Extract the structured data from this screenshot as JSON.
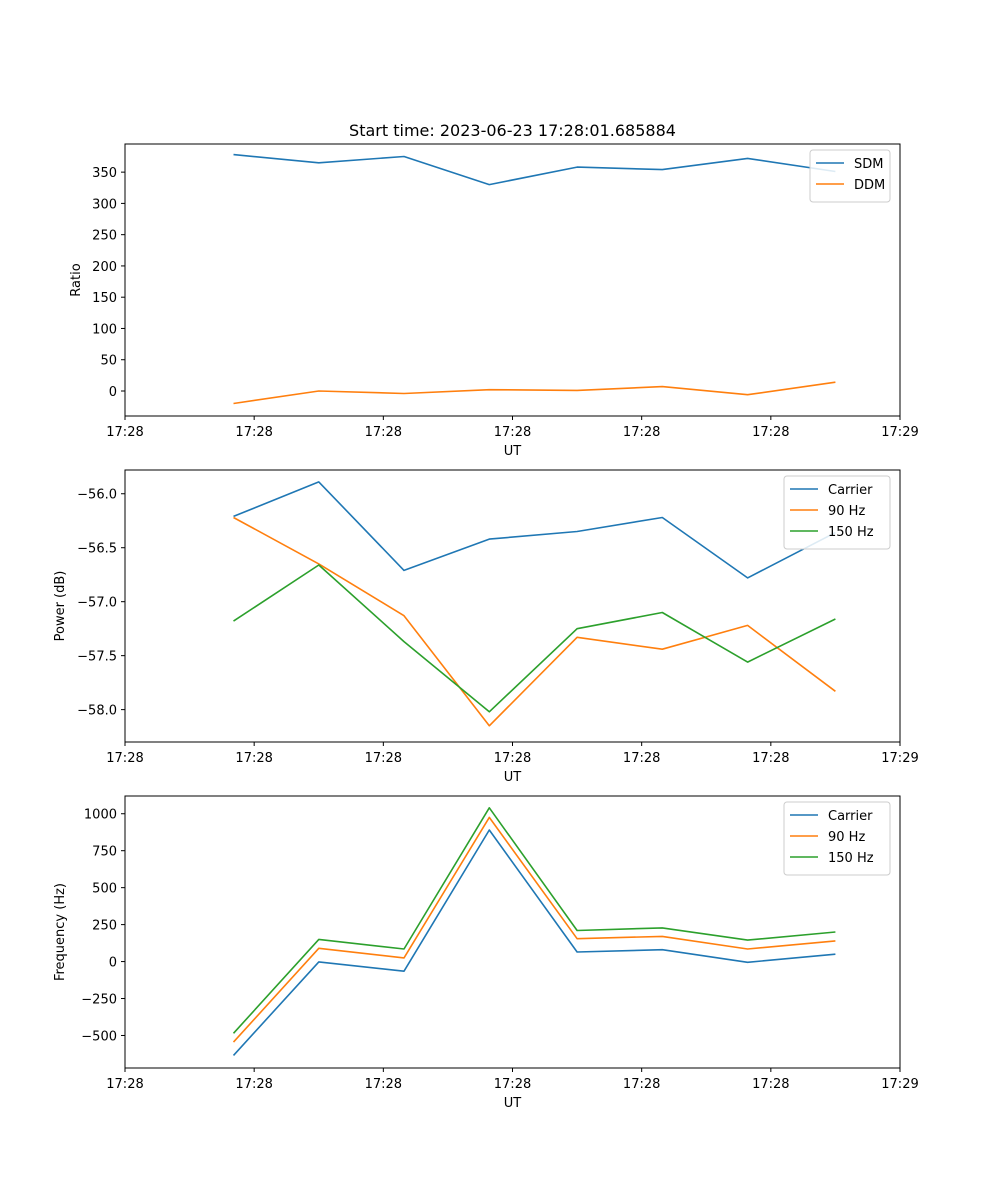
{
  "title": "Start time: 2023-06-23 17:28:01.685884",
  "colors": {
    "blue": "#1f77b4",
    "orange": "#ff7f0e",
    "green": "#2ca02c"
  },
  "chart_data": [
    {
      "type": "line",
      "x": [
        0.42,
        0.75,
        1.08,
        1.41,
        1.75,
        2.08,
        2.41,
        2.75
      ],
      "xlim": [
        0,
        3
      ],
      "xticks": [
        0,
        0.5,
        1,
        1.5,
        2,
        2.5,
        3
      ],
      "xtick_labels": [
        "17:28",
        "17:28",
        "17:28",
        "17:28",
        "17:28",
        "17:28",
        "17:29"
      ],
      "xlabel": "UT",
      "ylabel": "Ratio",
      "ylim": [
        -40,
        395
      ],
      "yticks": [
        0,
        50,
        100,
        150,
        200,
        250,
        300,
        350
      ],
      "ytick_labels": [
        "0",
        "50",
        "100",
        "150",
        "200",
        "250",
        "300",
        "350"
      ],
      "grid": false,
      "legend": "top-right",
      "series": [
        {
          "name": "SDM",
          "color": "#1f77b4",
          "values": [
            378,
            365,
            375,
            330,
            358,
            354,
            372,
            351
          ]
        },
        {
          "name": "DDM",
          "color": "#ff7f0e",
          "values": [
            -20,
            0,
            -4,
            2,
            1,
            7,
            -6,
            14
          ]
        }
      ]
    },
    {
      "type": "line",
      "x": [
        0.42,
        0.75,
        1.08,
        1.41,
        1.75,
        2.08,
        2.41,
        2.75
      ],
      "xlim": [
        0,
        3
      ],
      "xticks": [
        0,
        0.5,
        1,
        1.5,
        2,
        2.5,
        3
      ],
      "xtick_labels": [
        "17:28",
        "17:28",
        "17:28",
        "17:28",
        "17:28",
        "17:28",
        "17:29"
      ],
      "xlabel": "UT",
      "ylabel": "Power (dB)",
      "ylim": [
        -58.3,
        -55.78
      ],
      "yticks": [
        -58.0,
        -57.5,
        -57.0,
        -56.5,
        -56.0
      ],
      "ytick_labels": [
        "−58.0",
        "−57.5",
        "−57.0",
        "−56.5",
        "−56.0"
      ],
      "grid": false,
      "legend": "top-right",
      "series": [
        {
          "name": "Carrier",
          "color": "#1f77b4",
          "values": [
            -56.21,
            -55.89,
            -56.71,
            -56.42,
            -56.35,
            -56.22,
            -56.78,
            -56.36
          ]
        },
        {
          "name": "90 Hz",
          "color": "#ff7f0e",
          "values": [
            -56.22,
            -56.65,
            -57.13,
            -58.15,
            -57.33,
            -57.44,
            -57.22,
            -57.83
          ]
        },
        {
          "name": "150 Hz",
          "color": "#2ca02c",
          "values": [
            -57.18,
            -56.66,
            -57.37,
            -58.02,
            -57.25,
            -57.1,
            -57.56,
            -57.16
          ]
        }
      ]
    },
    {
      "type": "line",
      "x": [
        0.42,
        0.75,
        1.08,
        1.41,
        1.75,
        2.08,
        2.41,
        2.75
      ],
      "xlim": [
        0,
        3
      ],
      "xticks": [
        0,
        0.5,
        1,
        1.5,
        2,
        2.5,
        3
      ],
      "xtick_labels": [
        "17:28",
        "17:28",
        "17:28",
        "17:28",
        "17:28",
        "17:28",
        "17:29"
      ],
      "xlabel": "UT",
      "ylabel": "Frequency (Hz)",
      "ylim": [
        -720,
        1120
      ],
      "yticks": [
        -500,
        -250,
        0,
        250,
        500,
        750,
        1000
      ],
      "ytick_labels": [
        "−500",
        "−250",
        "0",
        "250",
        "500",
        "750",
        "1000"
      ],
      "grid": false,
      "legend": "top-right",
      "series": [
        {
          "name": "Carrier",
          "color": "#1f77b4",
          "values": [
            -635,
            -2,
            -65,
            890,
            65,
            80,
            -5,
            50
          ]
        },
        {
          "name": "90 Hz",
          "color": "#ff7f0e",
          "values": [
            -545,
            90,
            25,
            975,
            155,
            170,
            85,
            140
          ]
        },
        {
          "name": "150 Hz",
          "color": "#2ca02c",
          "values": [
            -485,
            150,
            85,
            1040,
            210,
            228,
            145,
            200
          ]
        }
      ]
    }
  ]
}
